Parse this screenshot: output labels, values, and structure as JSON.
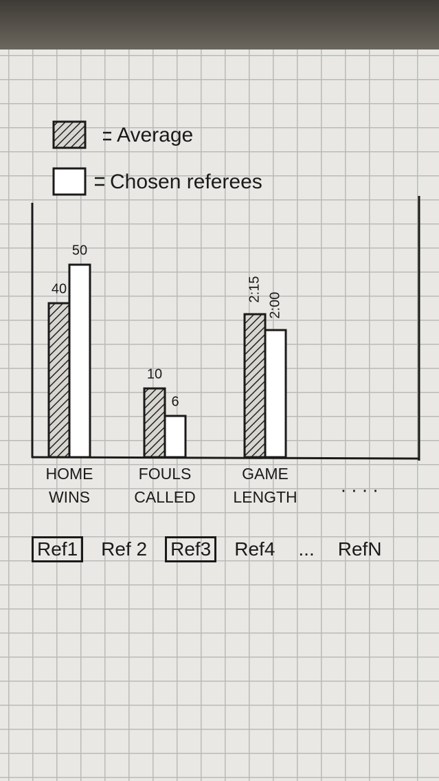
{
  "chart_data": {
    "type": "bar",
    "categories": [
      "HOME WINS",
      "FOULS CALLED",
      "GAME LENGTH"
    ],
    "series": [
      {
        "name": "Average",
        "color": "#222222",
        "pattern": "hatch",
        "values": [
          40,
          10,
          135
        ],
        "value_labels": [
          "40",
          "10",
          "2:15"
        ]
      },
      {
        "name": "Chosen referees",
        "color": "#ffffff",
        "values": [
          50,
          6,
          120
        ],
        "value_labels": [
          "50",
          "6",
          "2:00"
        ]
      }
    ],
    "more_indicator": ". . . ."
  },
  "referees": [
    {
      "label": "Ref1",
      "selected": true
    },
    {
      "label": "Ref 2",
      "selected": false
    },
    {
      "label": "Ref3",
      "selected": true
    },
    {
      "label": "Ref4",
      "selected": false
    },
    {
      "label": "...",
      "selected": false
    },
    {
      "label": "RefN",
      "selected": false
    }
  ]
}
